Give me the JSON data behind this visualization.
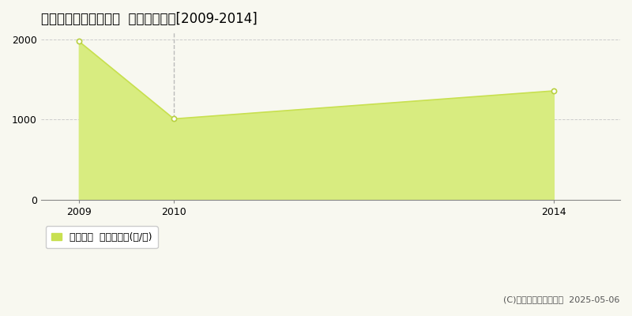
{
  "title": "南会津郡南会津町木伏  農地価格推移[2009-2014]",
  "years": [
    2009,
    2010,
    2014
  ],
  "values": [
    1980,
    1010,
    1360
  ],
  "line_color": "#c8e050",
  "fill_color": "#d8ec80",
  "fill_alpha": 1.0,
  "marker_color": "white",
  "marker_edge_color": "#b8d040",
  "vline_x": 2010,
  "vline_color": "#bbbbbb",
  "vline_style": "--",
  "ylim": [
    0,
    2100
  ],
  "yticks": [
    0,
    1000,
    2000
  ],
  "xlim": [
    2008.6,
    2014.7
  ],
  "xticks": [
    2009,
    2010,
    2014
  ],
  "grid_color": "#cccccc",
  "grid_style": "--",
  "bg_color": "#f8f8f0",
  "legend_label": "農地価格  平均坪単価(円/坪)",
  "copyright_text": "(C)土地価格ドットコム  2025-05-06",
  "title_fontsize": 12,
  "axis_fontsize": 9,
  "legend_fontsize": 9,
  "copyright_fontsize": 8
}
